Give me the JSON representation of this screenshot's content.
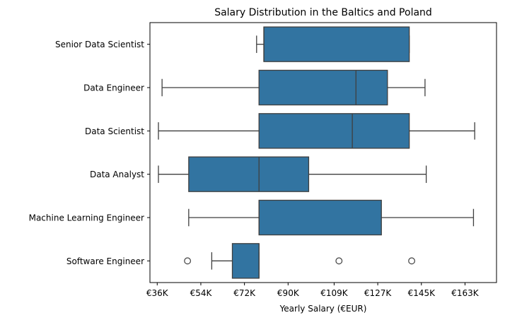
{
  "chart_data": {
    "type": "box",
    "orientation": "horizontal",
    "title": "Salary Distribution in the Baltics and Poland",
    "xlabel": "Yearly Salary (€EUR)",
    "ylabel": "",
    "xlim": [
      33000,
      176000
    ],
    "x_ticks": [
      36000,
      54000,
      72000,
      90000,
      109000,
      127000,
      145000,
      163000
    ],
    "x_tick_labels": [
      "€36K",
      "€54K",
      "€72K",
      "€90K",
      "€109K",
      "€127K",
      "€145K",
      "€163K"
    ],
    "grid": false,
    "box_color": "#3274a1",
    "edge_color": "#3f3f3f",
    "categories": [
      "Senior Data Scientist",
      "Data Engineer",
      "Data Scientist",
      "Data Analyst",
      "Machine Learning Engineer",
      "Software Engineer"
    ],
    "boxes": [
      {
        "label": "Senior Data Scientist",
        "whisker_low": 77000,
        "q1": 80000,
        "median": 80000,
        "q3": 140000,
        "whisker_high": 140000,
        "outliers": []
      },
      {
        "label": "Data Engineer",
        "whisker_low": 38000,
        "q1": 78000,
        "median": 118000,
        "q3": 131000,
        "whisker_high": 146500,
        "outliers": []
      },
      {
        "label": "Data Scientist",
        "whisker_low": 36500,
        "q1": 78000,
        "median": 116500,
        "q3": 140000,
        "whisker_high": 167000,
        "outliers": []
      },
      {
        "label": "Data Analyst",
        "whisker_low": 36500,
        "q1": 49000,
        "median": 78000,
        "q3": 98500,
        "whisker_high": 147000,
        "outliers": []
      },
      {
        "label": "Machine Learning Engineer",
        "whisker_low": 49000,
        "q1": 78000,
        "median": 78000,
        "q3": 128500,
        "whisker_high": 166500,
        "outliers": []
      },
      {
        "label": "Software Engineer",
        "whisker_low": 58500,
        "q1": 67000,
        "median": 78000,
        "q3": 78000,
        "whisker_high": 78000,
        "outliers": [
          48500,
          111000,
          141000
        ]
      }
    ]
  }
}
